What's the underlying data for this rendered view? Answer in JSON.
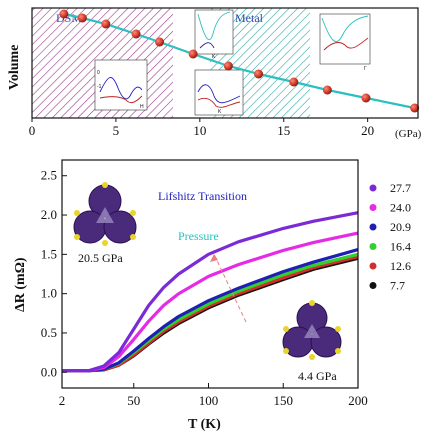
{
  "chart_data": [
    {
      "type": "scatter",
      "ylabel": "Volume",
      "xunit": "(GPa)",
      "xlim": [
        0,
        23
      ],
      "xticks": [
        "0",
        "5",
        "10",
        "15",
        "20"
      ],
      "x": [
        1.9,
        3.0,
        4.4,
        6.2,
        7.6,
        9.6,
        11.7,
        13.5,
        15.6,
        17.6,
        19.9,
        22.8
      ],
      "y": [
        0.97,
        0.95,
        0.92,
        0.87,
        0.83,
        0.77,
        0.71,
        0.67,
        0.63,
        0.59,
        0.55,
        0.5
      ],
      "regions": [
        {
          "label": "DSM",
          "from": 0,
          "to": 8.3,
          "color": "#9b3d8b"
        },
        {
          "label": "Metal",
          "from": 12.3,
          "to": 18.2,
          "color": "#27a7a7"
        }
      ],
      "inset_labels": [
        "K",
        "H",
        "K",
        "Γ"
      ],
      "inset_ticks": [
        "0",
        "-1",
        "-3"
      ],
      "point_color": "#c0392b",
      "fit_color": "#2bc0c0"
    },
    {
      "type": "line",
      "xlabel": "T (K)",
      "ylabel": "ΔR (mΩ)",
      "xlim": [
        2,
        200
      ],
      "ylim": [
        -0.2,
        2.7
      ],
      "xticks": [
        "2",
        "50",
        "100",
        "150",
        "200"
      ],
      "yticks": [
        "0.0",
        "0.5",
        "1.0",
        "1.5",
        "2.0",
        "2.5"
      ],
      "series": [
        {
          "name": "27.7",
          "color": "#7b2bd6",
          "x": [
            2,
            20,
            30,
            40,
            50,
            60,
            70,
            80,
            100,
            120,
            150,
            170,
            200
          ],
          "y": [
            0.02,
            0.02,
            0.08,
            0.25,
            0.55,
            0.85,
            1.08,
            1.25,
            1.5,
            1.66,
            1.83,
            1.92,
            2.03
          ]
        },
        {
          "name": "24.0",
          "color": "#e52be5",
          "x": [
            2,
            20,
            30,
            40,
            50,
            60,
            70,
            80,
            100,
            120,
            150,
            170,
            200
          ],
          "y": [
            0.02,
            0.02,
            0.06,
            0.2,
            0.42,
            0.65,
            0.85,
            1.0,
            1.22,
            1.37,
            1.55,
            1.65,
            1.77
          ]
        },
        {
          "name": "20.9",
          "color": "#1f1fb4",
          "x": [
            2,
            20,
            30,
            40,
            50,
            60,
            70,
            80,
            100,
            120,
            150,
            170,
            200
          ],
          "y": [
            0.02,
            0.02,
            0.04,
            0.12,
            0.27,
            0.43,
            0.58,
            0.71,
            0.91,
            1.07,
            1.28,
            1.4,
            1.56
          ]
        },
        {
          "name": "16.4",
          "color": "#2ed12e",
          "x": [
            2,
            20,
            30,
            40,
            50,
            60,
            70,
            80,
            100,
            120,
            150,
            170,
            200
          ],
          "y": [
            0.02,
            0.02,
            0.04,
            0.11,
            0.25,
            0.4,
            0.55,
            0.67,
            0.87,
            1.03,
            1.24,
            1.36,
            1.5
          ]
        },
        {
          "name": "12.6",
          "color": "#d62b2b",
          "x": [
            2,
            20,
            30,
            40,
            50,
            60,
            70,
            80,
            100,
            120,
            150,
            170,
            200
          ],
          "y": [
            0.02,
            0.02,
            0.03,
            0.09,
            0.22,
            0.37,
            0.52,
            0.64,
            0.84,
            1.0,
            1.2,
            1.33,
            1.47
          ]
        },
        {
          "name": "7.7",
          "color": "#111111",
          "x": [
            2,
            20,
            30,
            40,
            50,
            60,
            70,
            80,
            100,
            120,
            150,
            170,
            200
          ],
          "y": [
            0.02,
            0.02,
            0.03,
            0.09,
            0.21,
            0.36,
            0.5,
            0.62,
            0.82,
            0.98,
            1.18,
            1.31,
            1.45
          ]
        }
      ],
      "annotations": {
        "title": "Lifshitz Transition",
        "pressure": "Pressure",
        "high_label": "20.5 GPa",
        "low_label": "4.4 GPa"
      },
      "colors": {
        "title": "#2222c0",
        "pressure": "#2bc0c0",
        "arrow": "#e88080"
      }
    }
  ]
}
